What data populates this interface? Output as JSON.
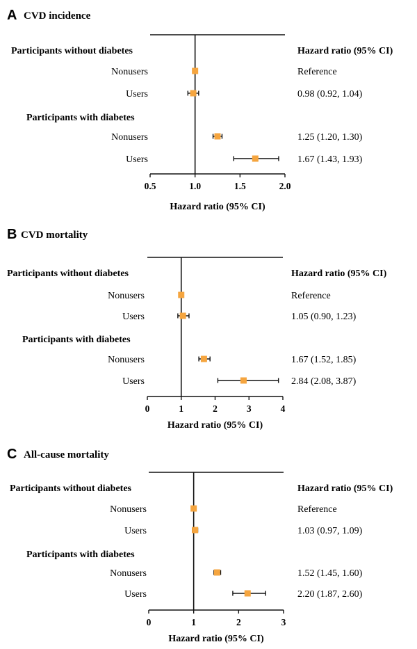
{
  "chart_data": [
    {
      "type": "forest",
      "panel": "A",
      "title": "CVD incidence",
      "xlabel": "Hazard ratio (95% CI)",
      "xlim": [
        0.5,
        2.0
      ],
      "xticks": [
        0.5,
        1.0,
        1.5,
        2.0
      ],
      "xtick_labels": [
        "0.5",
        "1.0",
        "1.5",
        "2.0"
      ],
      "reference_line": 1.0,
      "hr_header": "Hazard ratio (95% CI)",
      "groups": [
        {
          "label": "Participants without diabetes",
          "rows": [
            {
              "label": "Nonusers",
              "hr": 1.0,
              "lower": null,
              "upper": null,
              "text": "Reference"
            },
            {
              "label": "Users",
              "hr": 0.98,
              "lower": 0.92,
              "upper": 1.04,
              "text": "0.98 (0.92, 1.04)"
            }
          ]
        },
        {
          "label": "Participants with diabetes",
          "rows": [
            {
              "label": "Nonusers",
              "hr": 1.25,
              "lower": 1.2,
              "upper": 1.3,
              "text": "1.25 (1.20, 1.30)"
            },
            {
              "label": "Users",
              "hr": 1.67,
              "lower": 1.43,
              "upper": 1.93,
              "text": "1.67 (1.43, 1.93)"
            }
          ]
        }
      ]
    },
    {
      "type": "forest",
      "panel": "B",
      "title": "CVD mortality",
      "xlabel": "Hazard ratio (95% CI)",
      "xlim": [
        0,
        4
      ],
      "xticks": [
        0,
        1,
        2,
        3,
        4
      ],
      "xtick_labels": [
        "0",
        "1",
        "2",
        "3",
        "4"
      ],
      "reference_line": 1,
      "hr_header": "Hazard ratio (95% CI)",
      "groups": [
        {
          "label": "Participants without diabetes",
          "rows": [
            {
              "label": "Nonusers",
              "hr": 1.0,
              "lower": null,
              "upper": null,
              "text": "Reference"
            },
            {
              "label": "Users",
              "hr": 1.05,
              "lower": 0.9,
              "upper": 1.23,
              "text": "1.05 (0.90, 1.23)"
            }
          ]
        },
        {
          "label": "Participants with diabetes",
          "rows": [
            {
              "label": "Nonusers",
              "hr": 1.67,
              "lower": 1.52,
              "upper": 1.85,
              "text": "1.67 (1.52, 1.85)"
            },
            {
              "label": "Users",
              "hr": 2.84,
              "lower": 2.08,
              "upper": 3.87,
              "text": "2.84 (2.08, 3.87)"
            }
          ]
        }
      ]
    },
    {
      "type": "forest",
      "panel": "C",
      "title": "All-cause mortality",
      "xlabel": "Hazard ratio (95% CI)",
      "xlim": [
        0,
        3
      ],
      "xticks": [
        0,
        1,
        2,
        3
      ],
      "xtick_labels": [
        "0",
        "1",
        "2",
        "3"
      ],
      "reference_line": 1,
      "hr_header": "Hazard ratio (95% CI)",
      "groups": [
        {
          "label": "Participants without diabetes",
          "rows": [
            {
              "label": "Nonusers",
              "hr": 1.0,
              "lower": null,
              "upper": null,
              "text": "Reference"
            },
            {
              "label": "Users",
              "hr": 1.03,
              "lower": 0.97,
              "upper": 1.09,
              "text": "1.03 (0.97, 1.09)"
            }
          ]
        },
        {
          "label": "Participants with diabetes",
          "rows": [
            {
              "label": "Nonusers",
              "hr": 1.52,
              "lower": 1.45,
              "upper": 1.6,
              "text": "1.52 (1.45, 1.60)"
            },
            {
              "label": "Users",
              "hr": 2.2,
              "lower": 1.87,
              "upper": 2.6,
              "text": "2.20 (1.87, 2.60)"
            }
          ]
        }
      ]
    }
  ],
  "colors": {
    "marker": "#F5A53F",
    "line": "#111111"
  }
}
